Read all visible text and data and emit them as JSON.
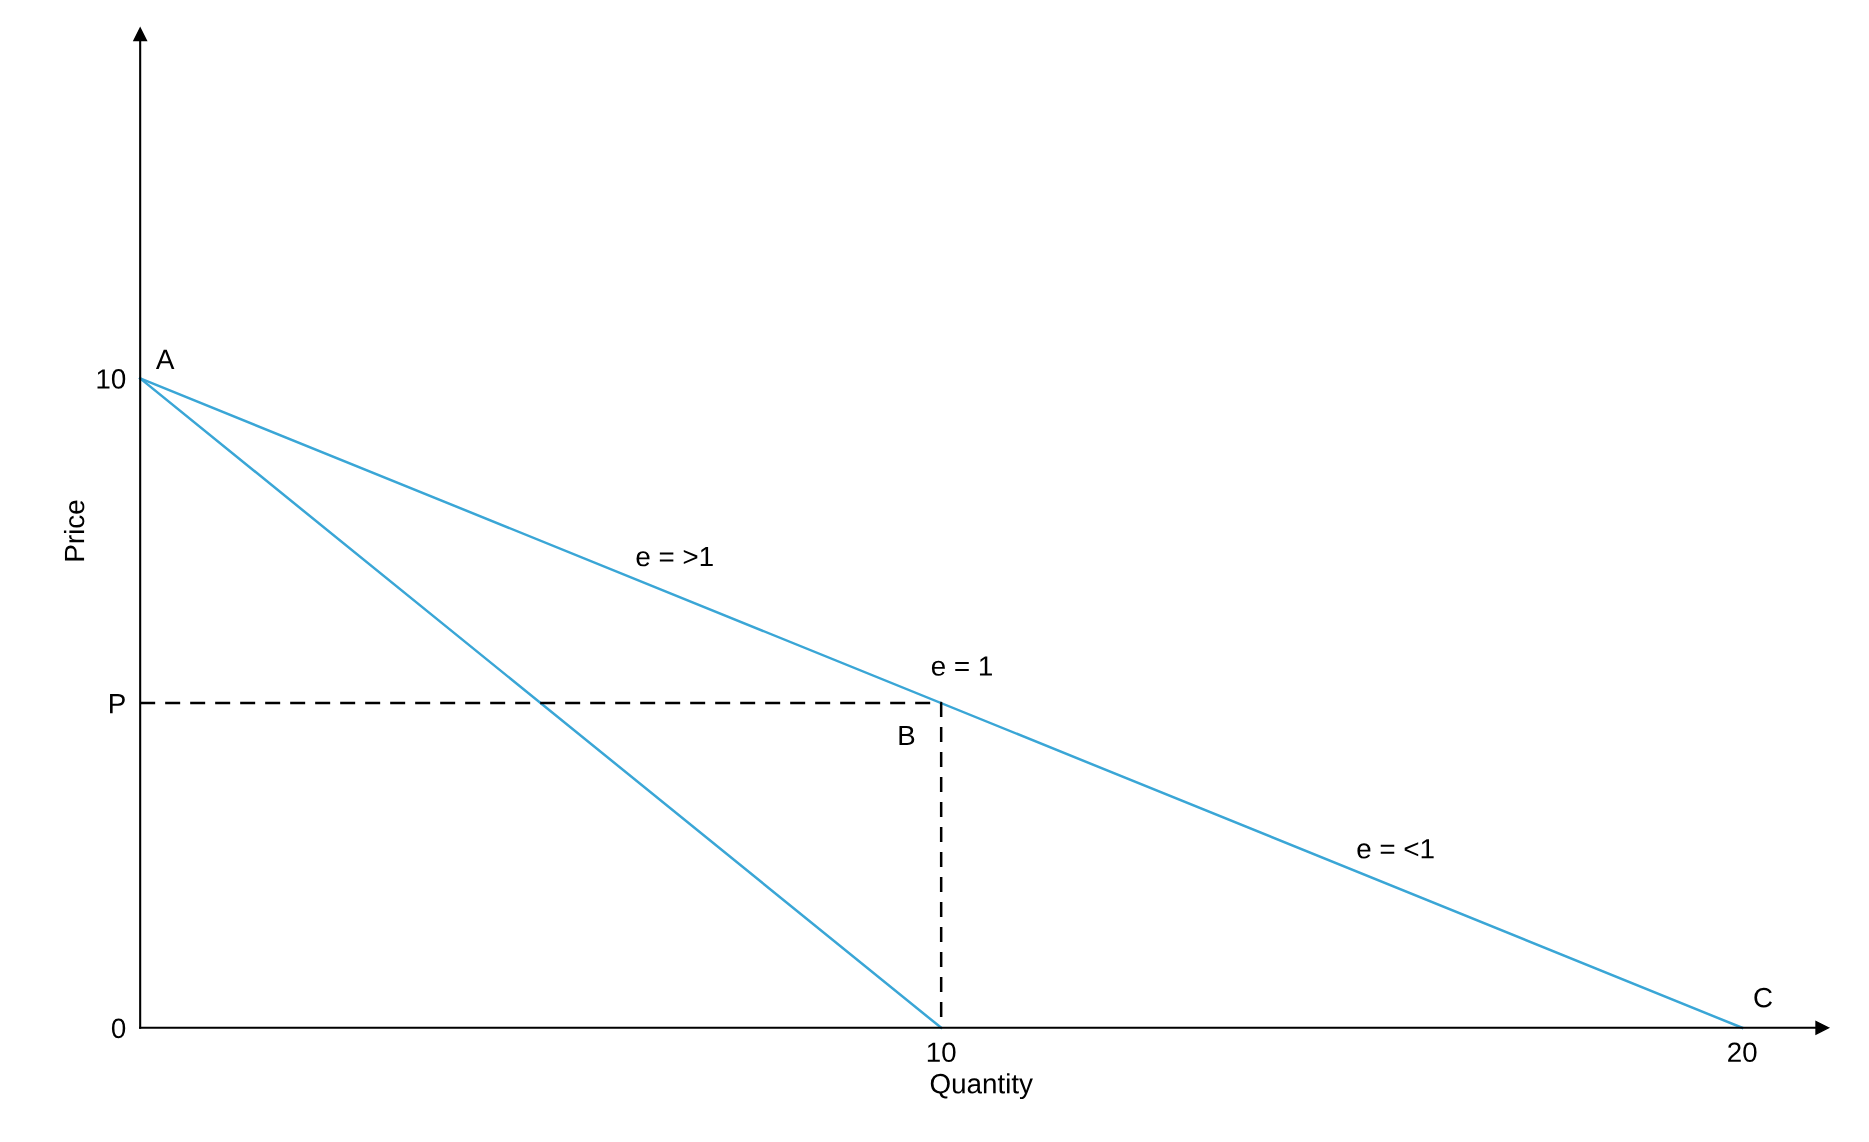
{
  "chart_data": {
    "type": "line",
    "xlabel": "Quantity",
    "ylabel": "Price",
    "xlim": [
      0,
      21
    ],
    "ylim": [
      0,
      15.3
    ],
    "xticks": [
      10,
      20
    ],
    "yticks": [
      0,
      {
        "value": 5,
        "label": "P"
      },
      10
    ],
    "grid": false,
    "legend": false,
    "marker": "none",
    "series": [
      {
        "x": [
          0,
          20
        ],
        "values": [
          10,
          0
        ],
        "color": "#3aa6d6",
        "line_style": "solid"
      },
      {
        "x": [
          0,
          10
        ],
        "values": [
          10,
          0
        ],
        "color": "#3aa6d6",
        "line_style": "solid"
      },
      {
        "x": [
          0,
          10,
          10
        ],
        "values": [
          5,
          5,
          0
        ],
        "color": "#000000",
        "line_style": "dashed"
      }
    ],
    "annotations": [
      {
        "text": "A",
        "x": 0,
        "y": 10
      },
      {
        "text": "B",
        "x": 10,
        "y": 5
      },
      {
        "text": "C",
        "x": 20,
        "y": 0
      },
      {
        "text": "e = 1",
        "x": 10,
        "y": 5
      },
      {
        "text": "e = >1",
        "x": 6.5,
        "y": 6.75
      },
      {
        "text": "e = <1",
        "x": 15.5,
        "y": 2.25
      }
    ]
  }
}
